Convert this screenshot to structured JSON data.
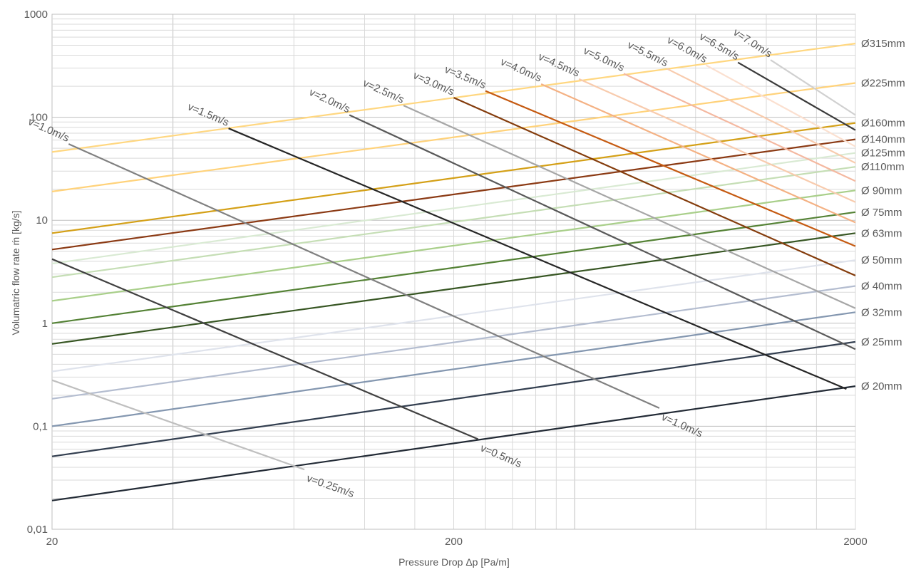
{
  "chart_data": {
    "type": "line",
    "scale": {
      "x": "log",
      "y": "log"
    },
    "xlabel": "Pressure Drop Δp [Pa/m]",
    "ylabel": "Volumatric flow rate ṁ [kg/s]",
    "xlim": [
      20,
      2000
    ],
    "ylim": [
      0.01,
      1000
    ],
    "grid": true,
    "x_ticks": [
      {
        "value": 20,
        "label": "20"
      },
      {
        "value": 200,
        "label": "200"
      },
      {
        "value": 2000,
        "label": "2000"
      }
    ],
    "y_ticks": [
      {
        "value": 1000,
        "label": "1000"
      },
      {
        "value": 100,
        "label": "100"
      },
      {
        "value": 10,
        "label": "10"
      },
      {
        "value": 1,
        "label": "1"
      },
      {
        "value": 0.1,
        "label": "0,1"
      },
      {
        "value": 0.01,
        "label": "0,01"
      }
    ],
    "diameter_series": [
      {
        "name": "Ø315mm",
        "color": "#ffd780",
        "points": [
          [
            20,
            46
          ],
          [
            2000,
            520
          ]
        ]
      },
      {
        "name": "Ø225mm",
        "color": "#ffd27a",
        "points": [
          [
            20,
            19
          ],
          [
            2000,
            215
          ]
        ]
      },
      {
        "name": "Ø160mm",
        "color": "#d4a017",
        "points": [
          [
            20,
            7.5
          ],
          [
            2000,
            88
          ]
        ]
      },
      {
        "name": "Ø140mm",
        "color": "#8b3a14",
        "points": [
          [
            20,
            5.2
          ],
          [
            2000,
            61
          ]
        ]
      },
      {
        "name": "Ø125mm",
        "color": "#d9ead3",
        "points": [
          [
            20,
            3.8
          ],
          [
            2000,
            45
          ]
        ]
      },
      {
        "name": "Ø110mm",
        "color": "#c5deb5",
        "points": [
          [
            20,
            2.8
          ],
          [
            2000,
            33
          ]
        ]
      },
      {
        "name": "Ø 90mm",
        "color": "#a9cf8a",
        "points": [
          [
            20,
            1.65
          ],
          [
            2000,
            19.5
          ]
        ]
      },
      {
        "name": "Ø 75mm",
        "color": "#548235",
        "points": [
          [
            20,
            1.0
          ],
          [
            2000,
            12
          ]
        ]
      },
      {
        "name": "Ø 63mm",
        "color": "#375623",
        "points": [
          [
            20,
            0.63
          ],
          [
            2000,
            7.5
          ]
        ]
      },
      {
        "name": "Ø 50mm",
        "color": "#dfe3ec",
        "points": [
          [
            20,
            0.34
          ],
          [
            2000,
            4.1
          ]
        ]
      },
      {
        "name": "Ø 40mm",
        "color": "#b4bdd0",
        "points": [
          [
            20,
            0.185
          ],
          [
            2000,
            2.3
          ]
        ]
      },
      {
        "name": "Ø 32mm",
        "color": "#8497b0",
        "points": [
          [
            20,
            0.1
          ],
          [
            2000,
            1.28
          ]
        ]
      },
      {
        "name": "Ø 25mm",
        "color": "#333f50",
        "points": [
          [
            20,
            0.051
          ],
          [
            2000,
            0.66
          ]
        ]
      },
      {
        "name": "Ø 20mm",
        "color": "#222a35",
        "points": [
          [
            20,
            0.019
          ],
          [
            2000,
            0.245
          ]
        ]
      }
    ],
    "velocity_series": [
      {
        "name": "v=0.25m/s",
        "color": "#bfbfbf",
        "points": [
          [
            20,
            0.28
          ],
          [
            85,
            0.038
          ]
        ],
        "label_at": "end"
      },
      {
        "name": "v=0.5m/s",
        "color": "#404040",
        "points": [
          [
            20,
            4.2
          ],
          [
            230,
            0.075
          ]
        ],
        "label_at": "end"
      },
      {
        "name": "v=1.0m/s",
        "color": "#808080",
        "points": [
          [
            22,
            55
          ],
          [
            650,
            0.15
          ]
        ],
        "label_at": "both"
      },
      {
        "name": "v=1.0m/s",
        "color": "#262626",
        "points": [
          [
            55,
            78
          ],
          [
            1900,
            0.23
          ]
        ],
        "label_at": "start",
        "label_hidden": true
      },
      {
        "name": "v=1.5m/s",
        "color": "#262626",
        "points": [
          [
            55,
            78
          ],
          [
            1900,
            0.23
          ]
        ],
        "label_at": "start"
      },
      {
        "name": "v=2.0m/s",
        "color": "#595959",
        "points": [
          [
            110,
            105
          ],
          [
            2000,
            0.56
          ]
        ],
        "label_at": "start"
      },
      {
        "name": "v=2.5m/s",
        "color": "#a6a6a6",
        "points": [
          [
            150,
            130
          ],
          [
            2000,
            1.4
          ]
        ],
        "label_at": "start"
      },
      {
        "name": "v=3.0m/s",
        "color": "#843c0c",
        "points": [
          [
            200,
            155
          ],
          [
            2000,
            2.9
          ]
        ],
        "label_at": "start"
      },
      {
        "name": "v=3.5m/s",
        "color": "#c55a11",
        "points": [
          [
            240,
            180
          ],
          [
            2000,
            5.6
          ]
        ],
        "label_at": "start"
      },
      {
        "name": "v=4.0m/s",
        "color": "#f4b183",
        "points": [
          [
            330,
            210
          ],
          [
            2000,
            9.5
          ]
        ],
        "label_at": "start"
      },
      {
        "name": "v=4.5m/s",
        "color": "#f8cbad",
        "points": [
          [
            410,
            235
          ],
          [
            2000,
            15
          ]
        ],
        "label_at": "start"
      },
      {
        "name": "v=5.0m/s",
        "color": "#f4b8a0",
        "points": [
          [
            530,
            265
          ],
          [
            2000,
            24
          ]
        ],
        "label_at": "start"
      },
      {
        "name": "v=5.5m/s",
        "color": "#f8cbad",
        "points": [
          [
            680,
            295
          ],
          [
            2000,
            36
          ]
        ],
        "label_at": "start"
      },
      {
        "name": "v=6.0m/s",
        "color": "#fbe0d0",
        "points": [
          [
            850,
            320
          ],
          [
            2000,
            52
          ]
        ],
        "label_at": "start"
      },
      {
        "name": "v=6.5m/s",
        "color": "#3a3a3a",
        "points": [
          [
            1020,
            340
          ],
          [
            2000,
            75
          ]
        ],
        "label_at": "start"
      },
      {
        "name": "v=7.0m/s",
        "color": "#d0d0d0",
        "points": [
          [
            1230,
            360
          ],
          [
            2000,
            105
          ]
        ],
        "label_at": "start"
      }
    ]
  }
}
